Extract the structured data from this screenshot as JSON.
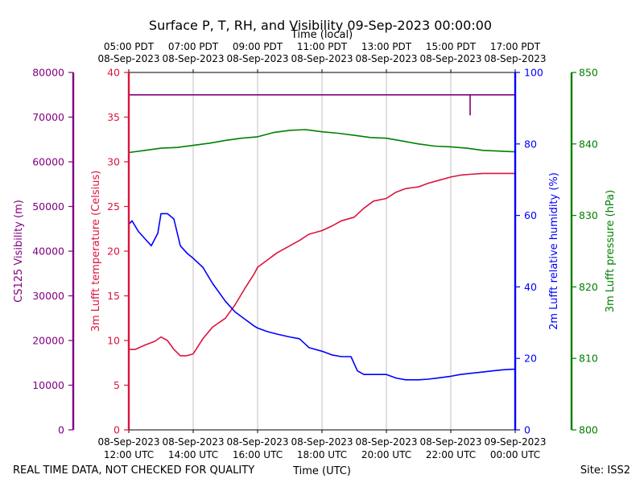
{
  "chart_data": {
    "type": "line",
    "title": "Surface P, T, RH, and Visibility 09-Sep-2023 00:00:00",
    "top_axis_label": "Time (local)",
    "top_ticks": [
      {
        "time": "05:00 PDT",
        "date": "08-Sep-2023"
      },
      {
        "time": "07:00 PDT",
        "date": "08-Sep-2023"
      },
      {
        "time": "09:00 PDT",
        "date": "08-Sep-2023"
      },
      {
        "time": "11:00 PDT",
        "date": "08-Sep-2023"
      },
      {
        "time": "13:00 PDT",
        "date": "08-Sep-2023"
      },
      {
        "time": "15:00 PDT",
        "date": "08-Sep-2023"
      },
      {
        "time": "17:00 PDT",
        "date": "08-Sep-2023"
      }
    ],
    "xlabel": "Time (UTC)",
    "bottom_ticks": [
      {
        "date": "08-Sep-2023",
        "time": "12:00 UTC"
      },
      {
        "date": "08-Sep-2023",
        "time": "14:00 UTC"
      },
      {
        "date": "08-Sep-2023",
        "time": "16:00 UTC"
      },
      {
        "date": "08-Sep-2023",
        "time": "18:00 UTC"
      },
      {
        "date": "08-Sep-2023",
        "time": "20:00 UTC"
      },
      {
        "date": "08-Sep-2023",
        "time": "22:00 UTC"
      },
      {
        "date": "09-Sep-2023",
        "time": "00:00 UTC"
      }
    ],
    "xlim_hours": [
      12,
      24
    ],
    "grid": true,
    "footer_left": "REAL TIME DATA, NOT CHECKED FOR QUALITY",
    "footer_right": "Site: ISS2",
    "axes": {
      "visibility": {
        "label": "CS125 Visibility (m)",
        "color": "#800080",
        "ylim": [
          0,
          80000
        ],
        "ticks": [
          0,
          10000,
          20000,
          30000,
          40000,
          50000,
          60000,
          70000,
          80000
        ]
      },
      "temperature": {
        "label": "3m Lufft temperature (Celsius)",
        "color": "#dc143c",
        "ylim": [
          0,
          40
        ],
        "ticks": [
          0,
          5,
          10,
          15,
          20,
          25,
          30,
          35,
          40
        ]
      },
      "humidity": {
        "label": "2m Lufft relative humidity (%)",
        "color": "#0000ff",
        "ylim": [
          0,
          100
        ],
        "ticks": [
          0,
          20,
          40,
          60,
          80,
          100
        ]
      },
      "pressure": {
        "label": "3m Lufft pressure (hPa)",
        "color": "#008000",
        "ylim": [
          800,
          850
        ],
        "ticks": [
          800,
          810,
          820,
          830,
          840,
          850
        ]
      }
    },
    "series": [
      {
        "name": "Visibility",
        "axis": "visibility",
        "x": [
          12.0,
          22.6,
          22.6,
          22.6,
          22.6,
          24.0
        ],
        "y": [
          75000,
          75000,
          70500,
          70500,
          75000,
          75000
        ]
      },
      {
        "name": "Temperature",
        "axis": "temperature",
        "x": [
          12.0,
          12.2,
          12.5,
          12.8,
          13.0,
          13.2,
          13.4,
          13.6,
          13.8,
          14.0,
          14.3,
          14.6,
          15.0,
          15.3,
          15.6,
          15.9,
          16.0,
          16.3,
          16.6,
          17.0,
          17.3,
          17.6,
          18.0,
          18.3,
          18.6,
          19.0,
          19.3,
          19.6,
          20.0,
          20.3,
          20.6,
          21.0,
          21.3,
          21.6,
          22.0,
          22.3,
          22.6,
          23.0,
          23.3,
          23.6,
          24.0
        ],
        "y": [
          9.0,
          9.0,
          9.5,
          9.9,
          10.4,
          10.0,
          9.0,
          8.3,
          8.3,
          8.5,
          10.2,
          11.5,
          12.5,
          14.0,
          15.8,
          17.5,
          18.2,
          19.0,
          19.8,
          20.6,
          21.2,
          21.9,
          22.3,
          22.8,
          23.4,
          23.8,
          24.8,
          25.6,
          25.9,
          26.6,
          27.0,
          27.2,
          27.6,
          27.9,
          28.3,
          28.5,
          28.6,
          28.7,
          28.7,
          28.7,
          28.7
        ]
      },
      {
        "name": "Relative Humidity",
        "axis": "humidity",
        "x": [
          12.0,
          12.1,
          12.3,
          12.5,
          12.7,
          12.9,
          13.0,
          13.2,
          13.4,
          13.6,
          13.8,
          14.0,
          14.3,
          14.6,
          15.0,
          15.3,
          15.6,
          15.9,
          16.0,
          16.3,
          16.6,
          17.0,
          17.3,
          17.6,
          18.0,
          18.3,
          18.6,
          18.9,
          19.1,
          19.3,
          19.6,
          20.0,
          20.3,
          20.6,
          21.0,
          21.3,
          21.6,
          22.0,
          22.3,
          22.6,
          23.0,
          23.3,
          23.6,
          24.0
        ],
        "y": [
          57.5,
          58.5,
          55.5,
          53.5,
          51.5,
          55.0,
          60.5,
          60.5,
          59.0,
          51.5,
          49.5,
          48.0,
          45.5,
          41.0,
          36.0,
          33.0,
          31.0,
          29.0,
          28.5,
          27.5,
          26.8,
          26.0,
          25.5,
          23.0,
          22.0,
          21.0,
          20.5,
          20.5,
          16.5,
          15.5,
          15.5,
          15.5,
          14.5,
          14.0,
          14.0,
          14.2,
          14.5,
          15.0,
          15.5,
          15.8,
          16.2,
          16.5,
          16.8,
          17.0
        ]
      },
      {
        "name": "Pressure",
        "axis": "pressure",
        "x": [
          12.0,
          12.5,
          13.0,
          13.5,
          14.0,
          14.5,
          15.0,
          15.5,
          16.0,
          16.5,
          17.0,
          17.5,
          18.0,
          18.5,
          19.0,
          19.5,
          20.0,
          20.5,
          21.0,
          21.5,
          22.0,
          22.5,
          23.0,
          23.5,
          24.0
        ],
        "y": [
          838.8,
          839.1,
          839.4,
          839.5,
          839.8,
          840.1,
          840.5,
          840.8,
          841.0,
          841.6,
          841.9,
          842.0,
          841.7,
          841.5,
          841.2,
          840.9,
          840.8,
          840.4,
          840.0,
          839.7,
          839.6,
          839.4,
          839.1,
          839.0,
          838.9
        ]
      }
    ]
  }
}
